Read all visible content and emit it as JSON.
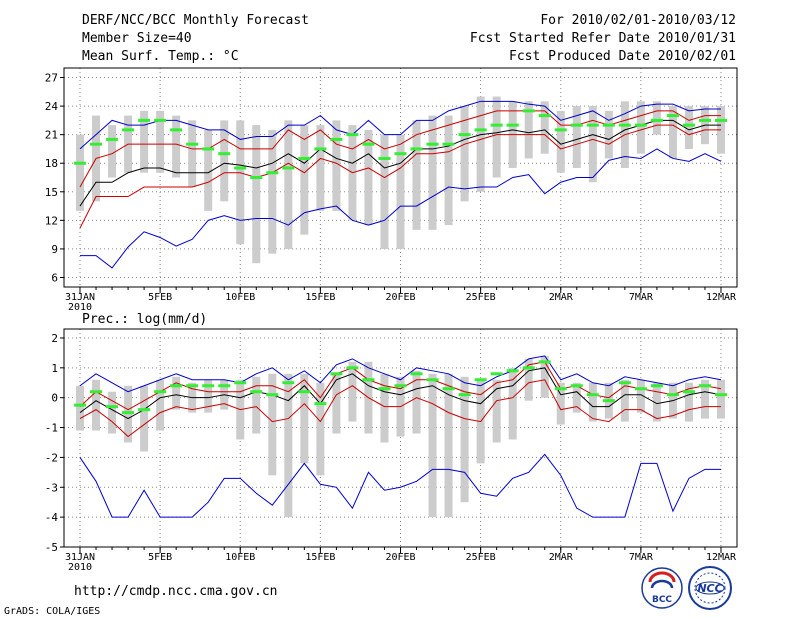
{
  "header": {
    "title": "DERF/NCC/BCC Monthly Forecast",
    "member_size": "Member Size=40",
    "variable": "Mean Surf. Temp.: °C",
    "period": "For 2010/02/01-2010/03/12",
    "refer_date": "Fcst Started Refer Date 2010/01/31",
    "produced_date": "Fcst Produced Date 2010/02/01"
  },
  "footer": {
    "url": "http://cmdp.ncc.cma.gov.cn",
    "credit": "GrADS: COLA/IGES",
    "logo_bcc": "BCC",
    "logo_ncc": "NCC"
  },
  "x_axis": {
    "n_days": 41,
    "ticks": [
      {
        "day": 0,
        "label": "31JAN",
        "year": "2010"
      },
      {
        "day": 5,
        "label": "5FEB"
      },
      {
        "day": 10,
        "label": "10FEB"
      },
      {
        "day": 15,
        "label": "15FEB"
      },
      {
        "day": 20,
        "label": "20FEB"
      },
      {
        "day": 25,
        "label": "25FEB"
      },
      {
        "day": 30,
        "label": "2MAR"
      },
      {
        "day": 35,
        "label": "7MAR"
      },
      {
        "day": 40,
        "label": "12MAR"
      }
    ]
  },
  "colors": {
    "max_line": "#0000cc",
    "upper_line": "#cc0000",
    "mean_line": "#000000",
    "lower_line": "#cc0000",
    "min_line": "#0000cc",
    "bar": "#cccccc",
    "marker": "#33ee33",
    "grid": "#888888"
  },
  "chart_data": [
    {
      "type": "line",
      "label": "",
      "ylim": [
        5,
        28
      ],
      "yticks": [
        6,
        9,
        12,
        15,
        18,
        21,
        24,
        27
      ],
      "x_start_day": 1,
      "bar_low": [
        13,
        14,
        16.5,
        17,
        17,
        17,
        16.5,
        15.5,
        13,
        14,
        9.5,
        7.5,
        8.5,
        9,
        10.5,
        13,
        13,
        12,
        11.5,
        9,
        9,
        11,
        11,
        11.5,
        14,
        15,
        16.5,
        17.5,
        18.5,
        19,
        17,
        17.5,
        16,
        18.5,
        17.5,
        19,
        21,
        18.5,
        19.5,
        20,
        19
      ],
      "bar_high": [
        21,
        23,
        22,
        23,
        23.5,
        23.5,
        23,
        22.5,
        21.5,
        22.5,
        22.5,
        22,
        21.5,
        22.5,
        22,
        22,
        22.5,
        22,
        21.5,
        21,
        21,
        22.5,
        23,
        23,
        24,
        25,
        25,
        24.5,
        24.5,
        24.5,
        23.5,
        24,
        24,
        23.5,
        24.5,
        24.5,
        24.5,
        24,
        24,
        24,
        24
      ],
      "series": [
        {
          "name": "max",
          "values": [
            19.5,
            21,
            22.5,
            22,
            22,
            22.5,
            22.5,
            22,
            21.5,
            21.5,
            20.5,
            20.8,
            20.8,
            22,
            22,
            23,
            21.5,
            21,
            22.5,
            21,
            21,
            22.5,
            22.5,
            23.5,
            24,
            24.5,
            24.5,
            24.5,
            24.2,
            24,
            22.5,
            23,
            23.5,
            22.5,
            23.2,
            24,
            24.2,
            24.2,
            23.5,
            23.7,
            23.7
          ]
        },
        {
          "name": "upper",
          "values": [
            15.5,
            18.5,
            19,
            20,
            20,
            20,
            20,
            19.5,
            19.5,
            20.5,
            19.5,
            19.5,
            19.5,
            21.5,
            20.5,
            21.5,
            20,
            19.5,
            20.5,
            19.5,
            20,
            21,
            21.5,
            22,
            22.5,
            23,
            23.5,
            23.5,
            23.5,
            23.5,
            22,
            22,
            22.5,
            22,
            22.5,
            23,
            23.5,
            23.5,
            22.5,
            23,
            23
          ]
        },
        {
          "name": "mean",
          "values": [
            13.5,
            16,
            16,
            17,
            17.5,
            17.5,
            17,
            17,
            17,
            18,
            17.8,
            17.5,
            18,
            19,
            18,
            19.5,
            18.5,
            18,
            19,
            17.5,
            18,
            19.5,
            19.5,
            19.8,
            20.5,
            21,
            21.2,
            21.5,
            21.2,
            21.5,
            20,
            20.5,
            21,
            20.5,
            21.5,
            22,
            22.5,
            22.5,
            21.5,
            22,
            22
          ]
        },
        {
          "name": "lower",
          "values": [
            11.2,
            14.5,
            14.5,
            14.5,
            15.5,
            15.5,
            15.5,
            15.5,
            16,
            17,
            17,
            16.5,
            17,
            18,
            17,
            18.5,
            18,
            17,
            17.5,
            16.5,
            17.5,
            19,
            19,
            19.2,
            20,
            20.5,
            21,
            21,
            21,
            21,
            19.5,
            20,
            20.5,
            20,
            21,
            21.5,
            22,
            22,
            21,
            21.5,
            21.5
          ]
        },
        {
          "name": "min",
          "values": [
            8.3,
            8.3,
            7,
            9.2,
            10.8,
            10.2,
            9.3,
            10,
            12,
            12.5,
            12,
            12.2,
            12.2,
            11.5,
            12.8,
            13.2,
            13.5,
            12,
            11.5,
            12,
            13.5,
            13.5,
            14.5,
            15.5,
            15.3,
            15.5,
            15.5,
            16.5,
            16.8,
            14.8,
            16,
            16.5,
            16.5,
            18.3,
            18.7,
            18.5,
            19.5,
            18.5,
            18.2,
            19,
            18.2
          ]
        }
      ],
      "markers": [
        18,
        20,
        20.5,
        21.5,
        22.5,
        22.5,
        21.5,
        20,
        19.5,
        19,
        17.5,
        16.5,
        17,
        17.5,
        18.5,
        19.5,
        20.5,
        21,
        20,
        18.5,
        19,
        19.5,
        20,
        20,
        21,
        21.5,
        22,
        22,
        23.5,
        23,
        21.5,
        22,
        22,
        22,
        22,
        22,
        22.5,
        23,
        22,
        22.5,
        22.5
      ]
    },
    {
      "type": "line",
      "label": "Prec.: log(mm/d)",
      "ylim": [
        -5,
        2.3
      ],
      "yticks": [
        -5,
        -4,
        -3,
        -2,
        -1,
        0,
        1,
        2
      ],
      "x_start_day": 1,
      "bar_low": [
        -1.1,
        -1.1,
        -1.2,
        -1.5,
        -1.8,
        -1.1,
        -0.4,
        -0.5,
        -0.5,
        -0.4,
        -1.4,
        -1.2,
        -2.6,
        -4,
        -2.2,
        -2.6,
        -1.2,
        -0.8,
        -1.2,
        -1.5,
        -1.3,
        -1.2,
        -4,
        -4,
        -3.5,
        -2.2,
        -1.5,
        -1.4,
        -0.1,
        0,
        -0.9,
        -0.5,
        -0.8,
        -0.7,
        -0.8,
        -0.5,
        -0.8,
        -0.7,
        -0.8,
        -0.7,
        -0.7
      ],
      "bar_high": [
        0.4,
        0.6,
        0.2,
        0.4,
        0.4,
        0.6,
        0.7,
        0.5,
        0.6,
        0.6,
        0.6,
        0.7,
        0.8,
        0.8,
        0.8,
        0.5,
        0.8,
        1.2,
        1.2,
        0.8,
        0.7,
        0.9,
        0.8,
        0.8,
        0.7,
        0.6,
        0.6,
        1,
        1.3,
        1.4,
        0.5,
        0.5,
        0.5,
        0.5,
        0.6,
        0.6,
        0.5,
        0.5,
        0.5,
        0.6,
        0.6
      ],
      "series": [
        {
          "name": "max",
          "values": [
            0.4,
            0.8,
            0.5,
            0.2,
            0.4,
            0.6,
            0.8,
            0.6,
            0.6,
            0.6,
            0.5,
            0.8,
            1,
            0.6,
            0.9,
            0.5,
            1.1,
            1.3,
            1,
            0.8,
            0.6,
            1,
            0.9,
            0.8,
            0.5,
            0.4,
            0.7,
            0.9,
            1.3,
            1.4,
            0.6,
            0.8,
            0.5,
            0.4,
            0.7,
            0.6,
            0.5,
            0.4,
            0.6,
            0.7,
            0.6
          ]
        },
        {
          "name": "upper",
          "values": [
            -0.3,
            0.2,
            -0.1,
            -0.4,
            -0.1,
            0.2,
            0.5,
            0.3,
            0.2,
            0.2,
            0.2,
            0.4,
            0.4,
            0.2,
            0.6,
            0,
            0.8,
            1,
            0.6,
            0.4,
            0.3,
            0.6,
            0.6,
            0.4,
            0.2,
            0.1,
            0.5,
            0.6,
            1.1,
            1.2,
            0.3,
            0.4,
            0.1,
            0,
            0.4,
            0.3,
            0.2,
            0.1,
            0.3,
            0.4,
            0.3
          ]
        },
        {
          "name": "mean",
          "values": [
            -0.5,
            -0.1,
            -0.4,
            -0.7,
            -0.4,
            0,
            0.1,
            0,
            0,
            0.1,
            0,
            0.2,
            0.1,
            -0.1,
            0.4,
            -0.2,
            0.6,
            0.8,
            0.4,
            0.2,
            0.1,
            0.3,
            0.4,
            0.1,
            -0.1,
            -0.2,
            0.3,
            0.4,
            0.9,
            1,
            0.1,
            0.2,
            -0.3,
            -0.3,
            0.1,
            0.1,
            -0.2,
            -0.1,
            0.1,
            0.2,
            0.1
          ]
        },
        {
          "name": "lower",
          "values": [
            -0.7,
            -0.4,
            -0.8,
            -1.3,
            -0.9,
            -0.5,
            -0.3,
            -0.4,
            -0.3,
            -0.2,
            -0.4,
            -0.3,
            -0.8,
            -0.7,
            -0.2,
            -0.8,
            0.1,
            0.4,
            0,
            -0.3,
            -0.3,
            0,
            -0.2,
            -0.5,
            -0.7,
            -0.8,
            -0.1,
            0,
            0.5,
            0.6,
            -0.4,
            -0.3,
            -0.7,
            -0.8,
            -0.4,
            -0.4,
            -0.7,
            -0.6,
            -0.4,
            -0.3,
            -0.3
          ]
        },
        {
          "name": "min",
          "values": [
            -2,
            -2.8,
            -4,
            -4,
            -3.1,
            -4,
            -4,
            -4,
            -3.5,
            -2.7,
            -2.7,
            -3.2,
            -3.6,
            -2.9,
            -2.2,
            -2.9,
            -3,
            -3.7,
            -2.5,
            -3.1,
            -3,
            -2.8,
            -2.4,
            -2.4,
            -2.5,
            -3.2,
            -3.3,
            -2.7,
            -2.5,
            -1.9,
            -2.6,
            -3.7,
            -4,
            -4,
            -4,
            -2.2,
            -2.2,
            -3.8,
            -2.7,
            -2.4,
            -2.4
          ]
        }
      ],
      "markers": [
        -0.25,
        0.2,
        -0.3,
        -0.5,
        -0.4,
        0.2,
        0.4,
        0.4,
        0.4,
        0.4,
        0.5,
        0.2,
        0.1,
        0.5,
        0.2,
        -0.2,
        0.8,
        1,
        0.6,
        0.3,
        0.4,
        0.8,
        0.6,
        0.3,
        0.1,
        0.6,
        0.8,
        0.9,
        1,
        1.2,
        0.3,
        0.4,
        0.1,
        -0.1,
        0.5,
        0.3,
        0.4,
        0.1,
        0.2,
        0.4,
        0.1
      ]
    }
  ]
}
